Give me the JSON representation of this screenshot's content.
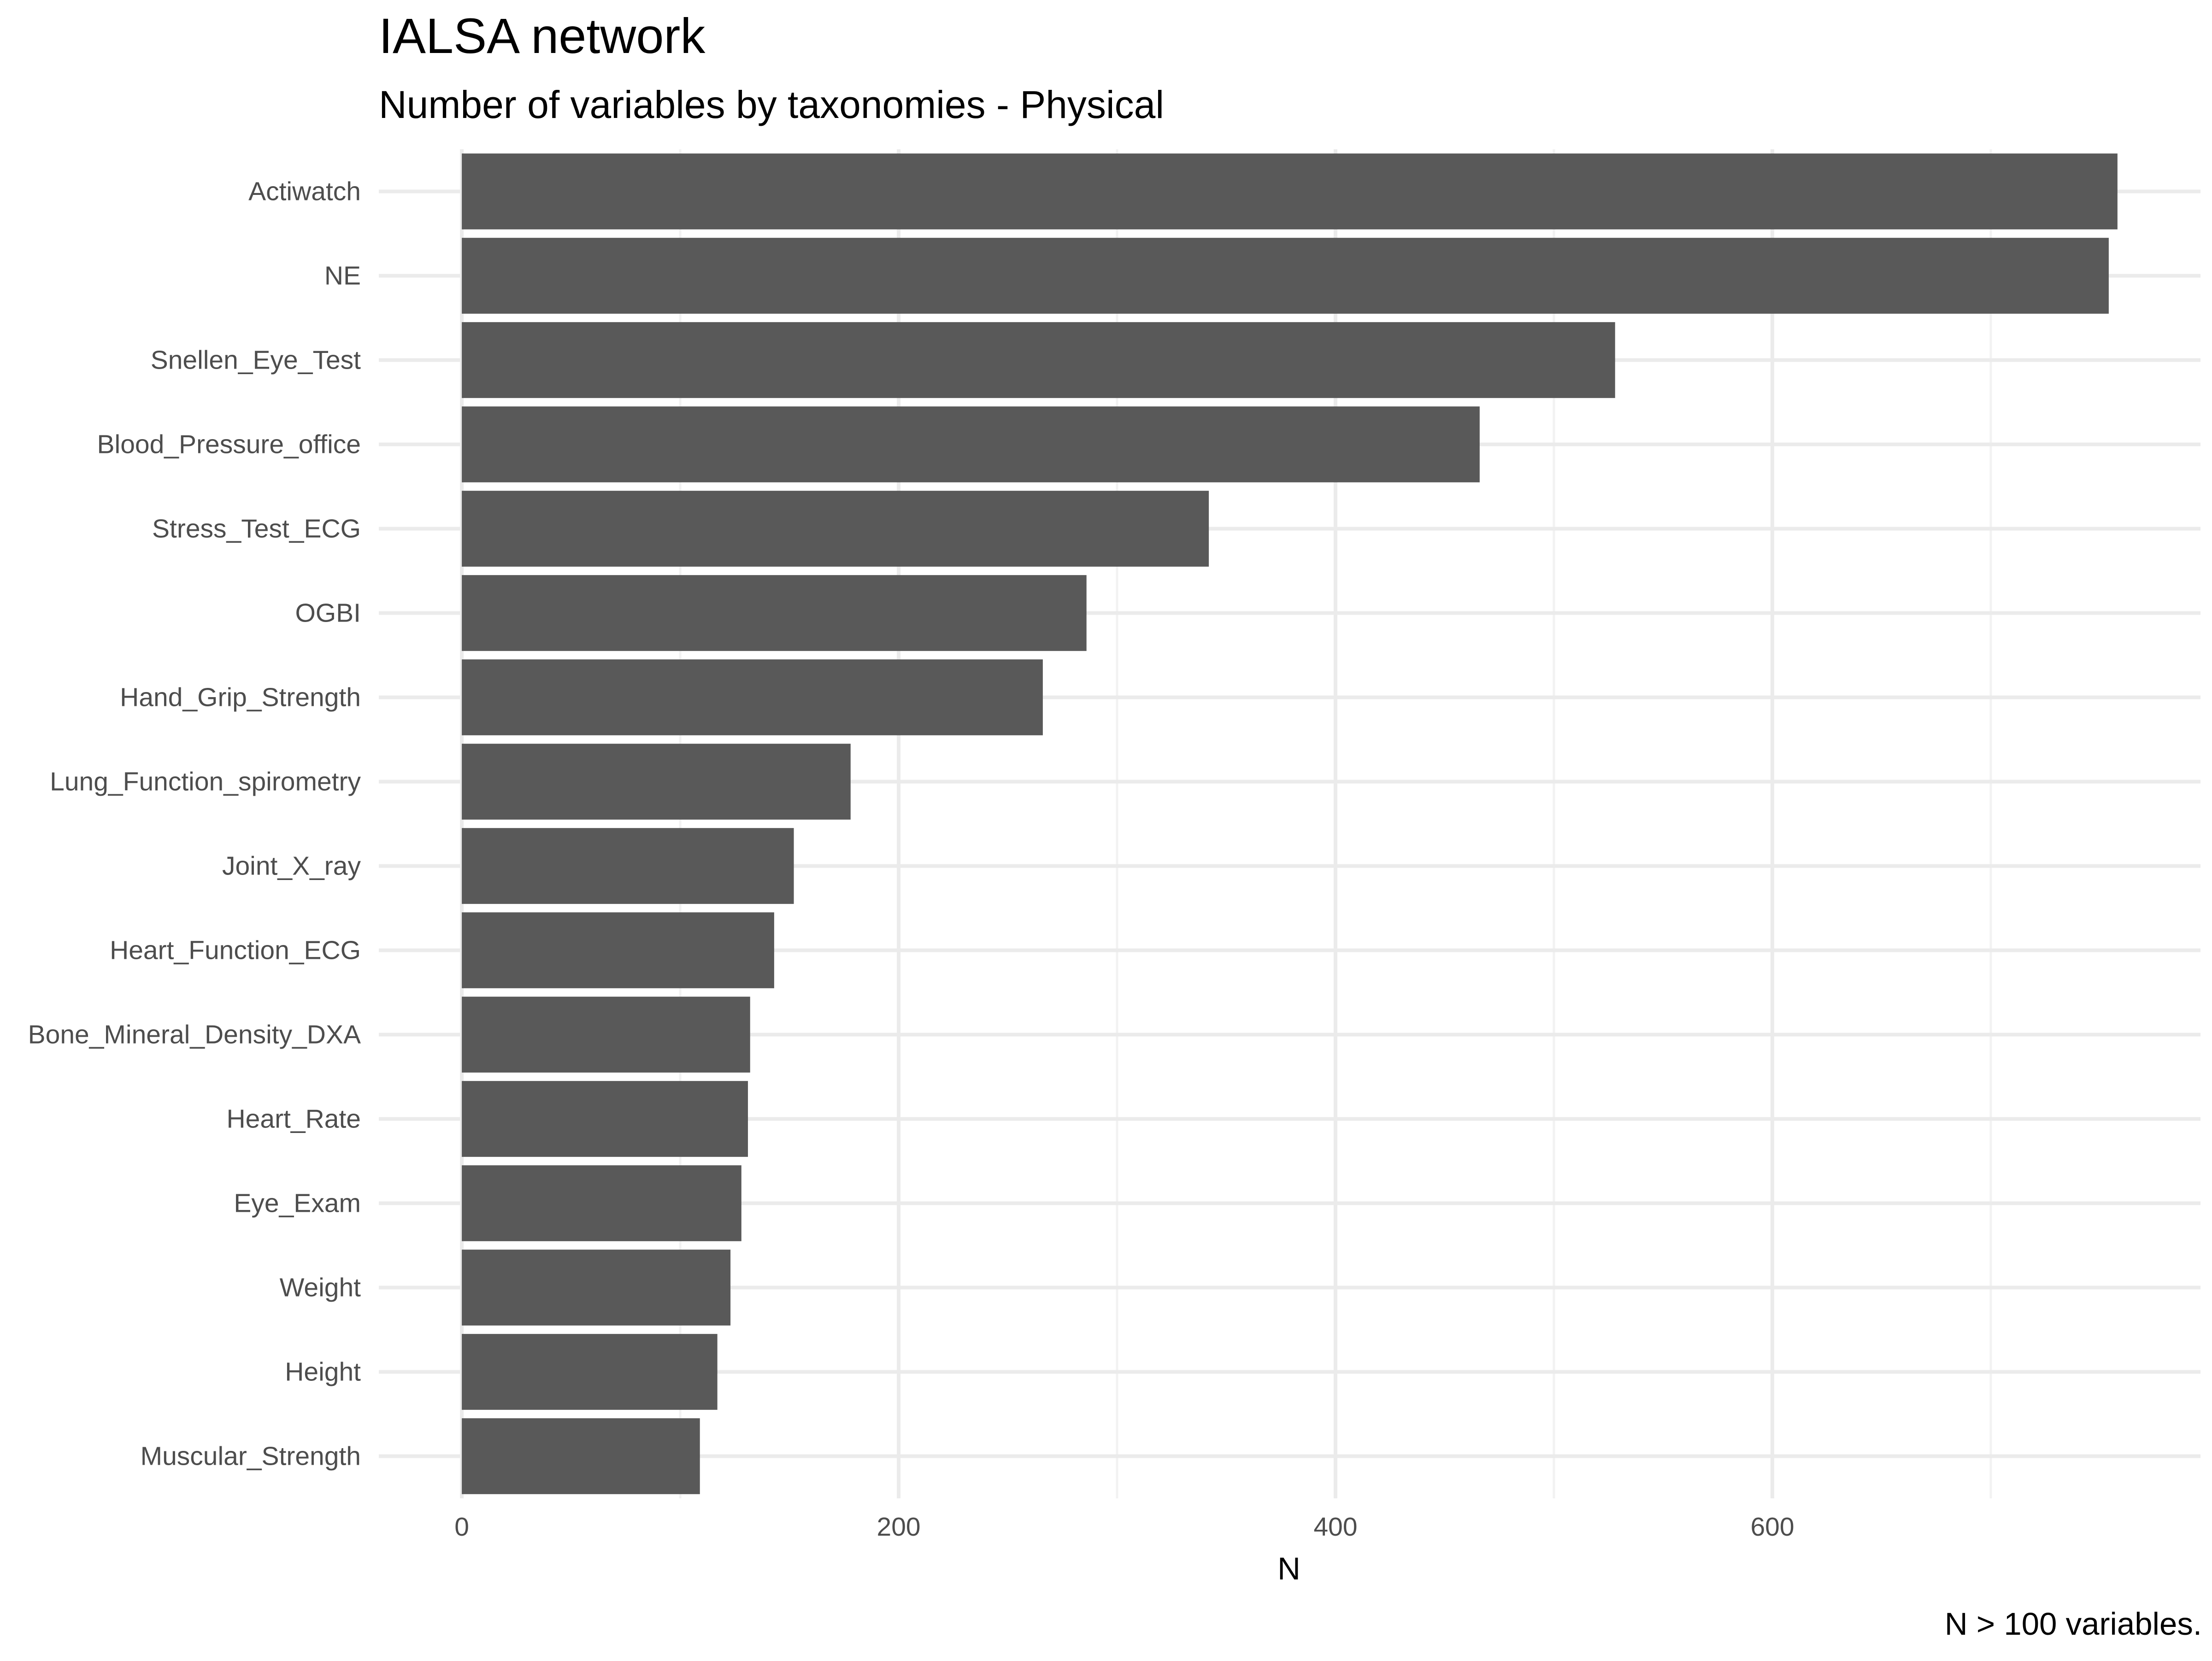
{
  "chart_data": {
    "type": "bar",
    "orientation": "horizontal",
    "title": "IALSA network",
    "subtitle": "Number of variables by taxonomies - Physical",
    "xlabel": "N",
    "ylabel": "",
    "caption": "N > 100 variables.",
    "categories": [
      "Actiwatch",
      "NE",
      "Snellen_Eye_Test",
      "Blood_Pressure_office",
      "Stress_Test_ECG",
      "OGBI",
      "Hand_Grip_Strength",
      "Lung_Function_spirometry",
      "Joint_X_ray",
      "Heart_Function_ECG",
      "Bone_Mineral_Density_DXA",
      "Heart_Rate",
      "Eye_Exam",
      "Weight",
      "Height",
      "Muscular_Strength"
    ],
    "values": [
      758,
      754,
      528,
      466,
      342,
      286,
      266,
      178,
      152,
      143,
      132,
      131,
      128,
      123,
      117,
      109
    ],
    "xlim": [
      -38,
      796
    ],
    "x_ticks": [
      0,
      200,
      400,
      600
    ],
    "x_minor_ticks": [
      100,
      300,
      500,
      700
    ],
    "grid": true,
    "legend": "none",
    "colors": {
      "bar": "#595959",
      "grid_major": "#ebebeb",
      "grid_minor": "#f2f2f2",
      "text_axis": "#4d4d4d",
      "text_title": "#000000",
      "background": "#ffffff"
    }
  }
}
